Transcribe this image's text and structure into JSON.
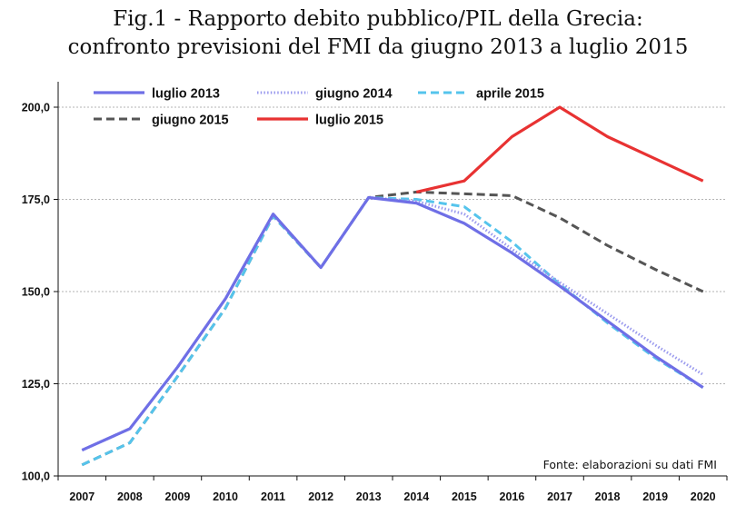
{
  "chart_data": {
    "type": "line",
    "title_line1": "Fig.1 - Rapporto debito pubblico/PIL della Grecia:",
    "title_line2": "confronto previsioni del FMI da giugno 2013 a luglio 2015",
    "xlabel": "",
    "ylabel": "",
    "categories": [
      "2007",
      "2008",
      "2009",
      "2010",
      "2011",
      "2012",
      "2013",
      "2014",
      "2015",
      "2016",
      "2017",
      "2018",
      "2019",
      "2020"
    ],
    "y_ticks": [
      "100,0",
      "125,0",
      "150,0",
      "175,0",
      "200,0"
    ],
    "ylim": [
      100,
      210
    ],
    "grid": "horizontal dashed",
    "legend_position": "top-left",
    "source": "Fonte: elaborazioni su dati FMI",
    "series": [
      {
        "name": "luglio 2013",
        "color": "#6f6fe6",
        "style": "solid",
        "values": [
          107,
          112.8,
          129.5,
          148,
          171,
          156.5,
          175.5,
          174,
          168.5,
          160.5,
          151.5,
          142,
          132.5,
          124
        ]
      },
      {
        "name": "giugno 2014",
        "color": "#9a9aee",
        "style": "dotted",
        "values": [
          107,
          112.8,
          129.5,
          148,
          171,
          156.5,
          175.5,
          174.5,
          171,
          161.5,
          152.5,
          144,
          135.5,
          127.5
        ]
      },
      {
        "name": "aprile 2015",
        "color": "#55c4ec",
        "style": "dashed",
        "values": [
          103,
          109,
          127,
          145.5,
          170.5,
          156.5,
          175.5,
          175,
          173,
          163.5,
          152,
          141.5,
          132,
          124
        ]
      },
      {
        "name": "giugno 2015",
        "color": "#555555",
        "style": "dashed",
        "values": [
          103,
          109,
          127,
          145.5,
          170.5,
          156.5,
          175.5,
          177,
          176.5,
          176,
          170,
          162.5,
          156,
          150
        ]
      },
      {
        "name": "luglio 2015",
        "color": "#e83232",
        "style": "solid",
        "values": [
          null,
          null,
          null,
          null,
          null,
          null,
          null,
          177,
          180,
          192,
          200,
          192,
          186,
          180
        ]
      }
    ]
  }
}
